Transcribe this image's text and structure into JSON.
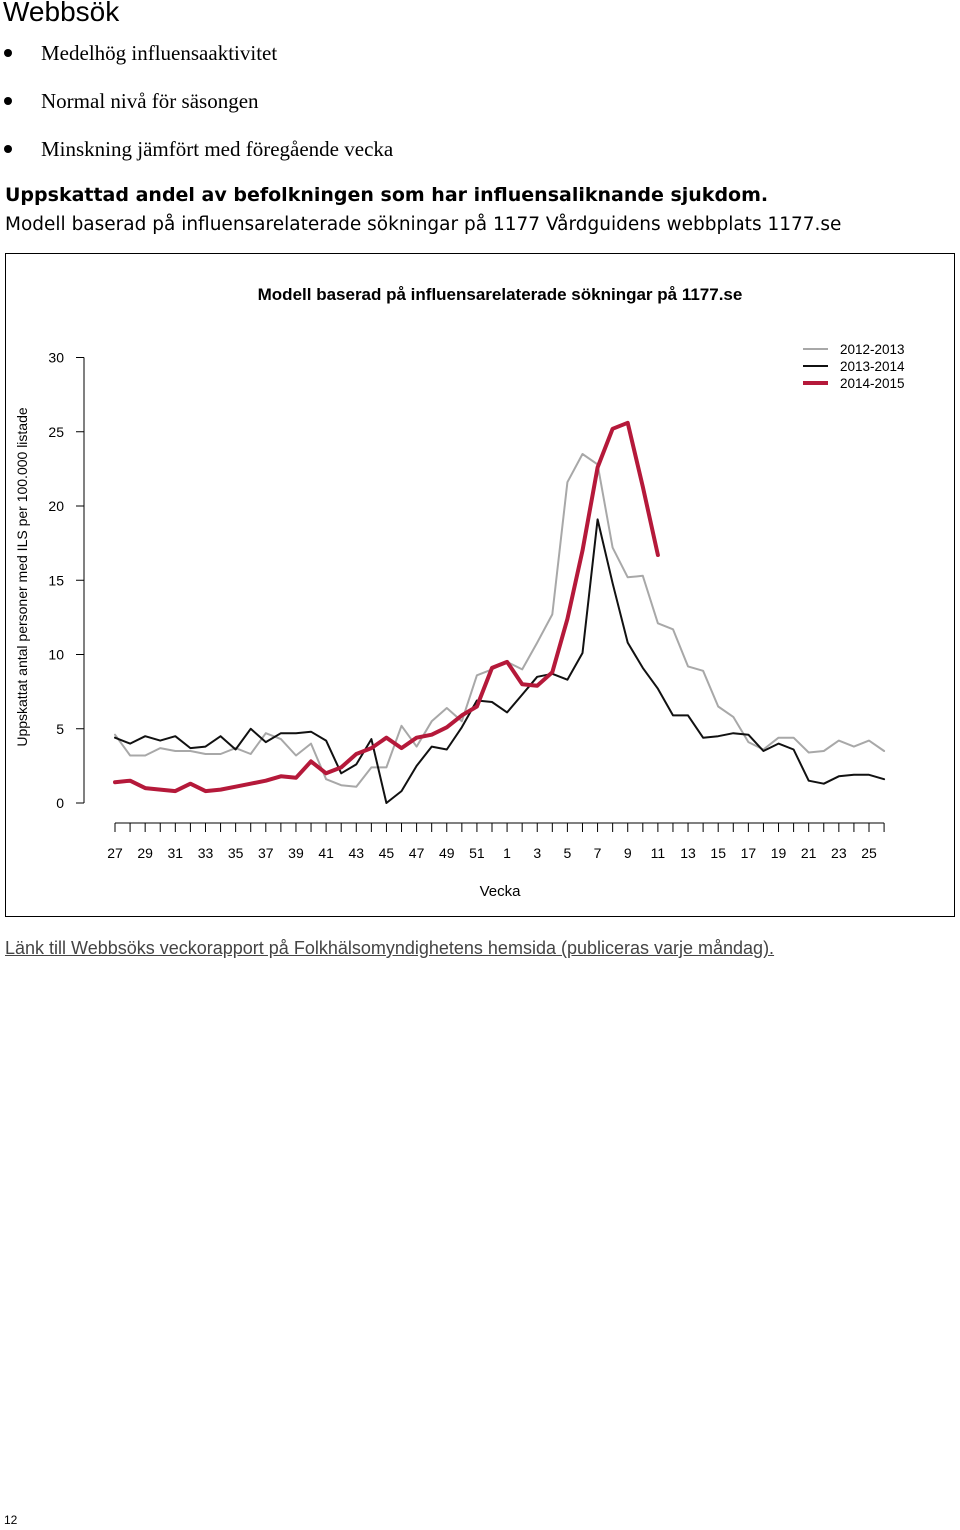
{
  "page": {
    "heading": "Webbsök",
    "bullets": [
      "Medelhög influensaaktivitet",
      "Normal nivå för säsongen",
      "Minskning jämfört med föregående vecka"
    ],
    "subheading": "Uppskattad andel av befolkningen som har influensaliknande sjukdom.",
    "description": "Modell baserad på influensarelaterade sökningar på 1177 Vårdguidens webbplats 1177.se",
    "link_text": "Länk till Webbsöks veckorapport på Folkhälsomyndighetens hemsida (publiceras varje måndag).",
    "page_number": "12"
  },
  "chart_data": {
    "type": "line",
    "title": "Modell baserad på influensarelaterade sökningar på 1177.se",
    "xlabel": "Vecka",
    "ylabel": "Uppskattat antal personer med ILS per 100.000 listade",
    "ylim": [
      0,
      30
    ],
    "yticks": [
      0,
      5,
      10,
      15,
      20,
      25,
      30
    ],
    "weeks": [
      27,
      28,
      29,
      30,
      31,
      32,
      33,
      34,
      35,
      36,
      37,
      38,
      39,
      40,
      41,
      42,
      43,
      44,
      45,
      46,
      47,
      48,
      49,
      50,
      51,
      52,
      1,
      2,
      3,
      4,
      5,
      6,
      7,
      8,
      9,
      10,
      11,
      12,
      13,
      14,
      15,
      16,
      17,
      18,
      19,
      20,
      21,
      22,
      23,
      24,
      25,
      26
    ],
    "x_tick_labels": [
      "27",
      "29",
      "31",
      "33",
      "35",
      "37",
      "39",
      "41",
      "43",
      "45",
      "47",
      "49",
      "51",
      "1",
      "3",
      "5",
      "7",
      "9",
      "11",
      "13",
      "15",
      "17",
      "19",
      "21",
      "23",
      "25"
    ],
    "legend_position": "top-right",
    "grid": false,
    "series": [
      {
        "name": "2012-2013",
        "color": "#a8a8a8",
        "values": [
          4.6,
          3.2,
          3.2,
          3.7,
          3.5,
          3.5,
          3.3,
          3.3,
          3.7,
          3.3,
          4.7,
          4.3,
          3.2,
          4.0,
          1.6,
          1.2,
          1.1,
          2.4,
          2.4,
          5.2,
          3.8,
          5.5,
          6.4,
          5.5,
          8.6,
          9.0,
          9.5,
          9.0,
          10.8,
          12.7,
          21.6,
          23.5,
          22.8,
          17.2,
          15.2,
          15.3,
          12.1,
          11.7,
          9.2,
          8.9,
          6.5,
          5.8,
          4.1,
          3.6,
          4.4,
          4.4,
          3.4,
          3.5,
          4.2,
          3.8,
          4.2,
          3.5
        ]
      },
      {
        "name": "2013-2014",
        "color": "#111111",
        "values": [
          4.4,
          4.0,
          4.5,
          4.2,
          4.5,
          3.7,
          3.8,
          4.5,
          3.6,
          5.0,
          4.1,
          4.7,
          4.7,
          4.8,
          4.2,
          2.0,
          2.6,
          4.3,
          0.0,
          0.8,
          2.5,
          3.8,
          3.6,
          5.1,
          6.9,
          6.8,
          6.1,
          7.3,
          8.5,
          8.7,
          8.3,
          10.1,
          19.1,
          14.8,
          10.8,
          9.1,
          7.7,
          5.9,
          5.9,
          4.4,
          4.5,
          4.7,
          4.6,
          3.5,
          4.0,
          3.6,
          1.5,
          1.3,
          1.8,
          1.9,
          1.9,
          1.6
        ]
      },
      {
        "name": "2014-2015",
        "color": "#b5193a",
        "values": [
          1.4,
          1.5,
          1.0,
          0.9,
          0.8,
          1.3,
          0.8,
          0.9,
          1.1,
          1.3,
          1.5,
          1.8,
          1.7,
          2.8,
          2.0,
          2.4,
          3.3,
          3.7,
          4.4,
          3.7,
          4.4,
          4.6,
          5.1,
          5.9,
          6.5,
          9.1,
          9.5,
          8.0,
          7.9,
          8.8,
          12.4,
          17.0,
          22.6,
          25.2,
          25.6,
          21.3,
          16.7
        ]
      }
    ]
  }
}
